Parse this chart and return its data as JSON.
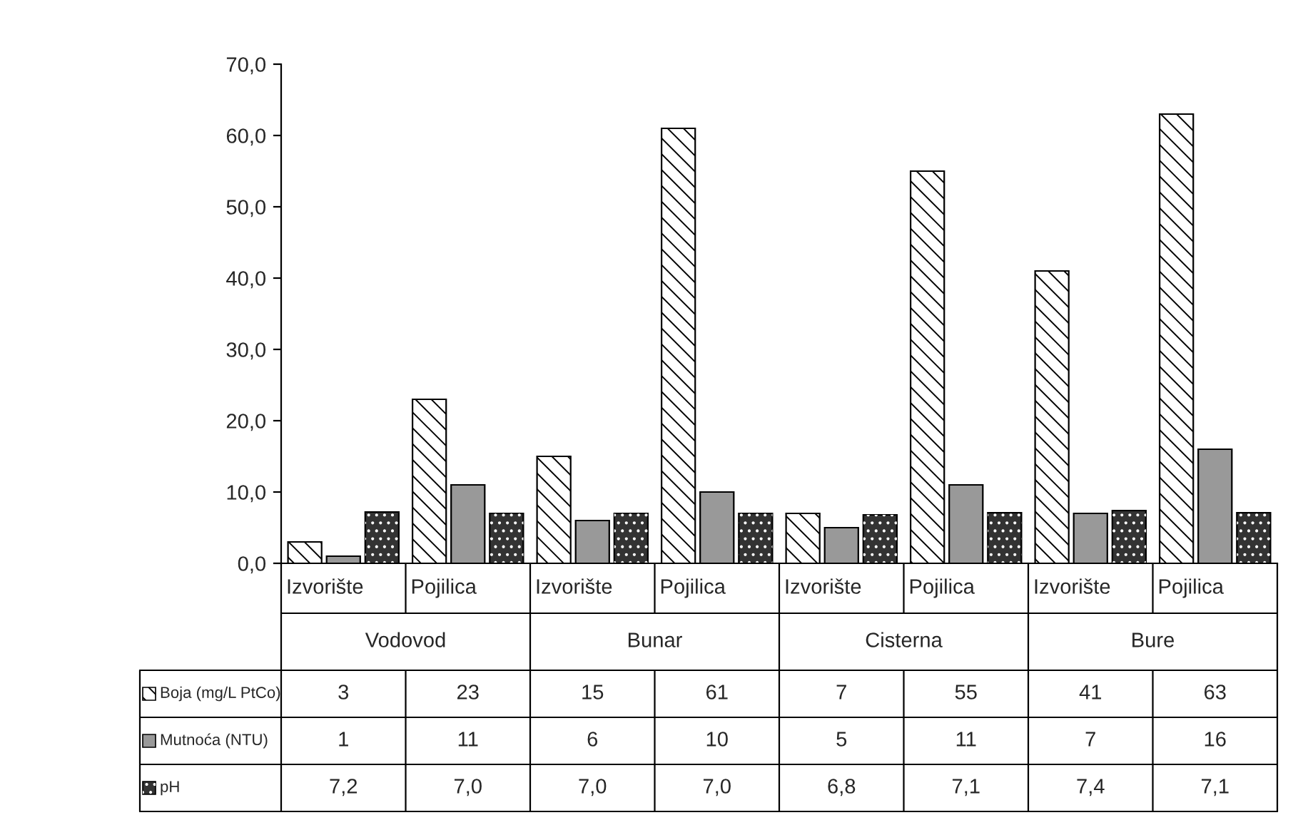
{
  "chart_data": {
    "type": "bar",
    "categories": [
      "Izvorište",
      "Pojilica",
      "Izvorište",
      "Pojilica",
      "Izvorište",
      "Pojilica",
      "Izvorište",
      "Pojilica"
    ],
    "annotations": [
      "Vodovod",
      "Bunar",
      "Cisterna",
      "Bure"
    ],
    "series": [
      {
        "name": "Boja (mg/L PtCo)",
        "color": "#ffffff",
        "values": [
          3,
          23,
          15,
          61,
          7,
          55,
          41,
          63
        ],
        "value_labels": [
          "3",
          "23",
          "15",
          "61",
          "7",
          "55",
          "41",
          "63"
        ]
      },
      {
        "name": "Mutnoća (NTU)",
        "color": "#999999",
        "values": [
          1,
          11,
          6,
          10,
          5,
          11,
          7,
          16
        ],
        "value_labels": [
          "1",
          "11",
          "6",
          "10",
          "5",
          "11",
          "7",
          "16"
        ]
      },
      {
        "name": "pH",
        "color": "#333333",
        "values": [
          7.2,
          7.0,
          7.0,
          7.0,
          6.8,
          7.1,
          7.4,
          7.1
        ],
        "value_labels": [
          "7,2",
          "7,0",
          "7,0",
          "7,0",
          "6,8",
          "7,1",
          "7,4",
          "7,1"
        ]
      }
    ],
    "ylim": [
      0,
      70
    ],
    "yticks": [
      {
        "value": 0,
        "label": "0,0"
      },
      {
        "value": 10,
        "label": "10,0"
      },
      {
        "value": 20,
        "label": "20,0"
      },
      {
        "value": 30,
        "label": "30,0"
      },
      {
        "value": 40,
        "label": "40,0"
      },
      {
        "value": 50,
        "label": "50,0"
      },
      {
        "value": 60,
        "label": "60,0"
      },
      {
        "value": 70,
        "label": "70,0"
      }
    ],
    "grid": false,
    "legend": "bottom"
  }
}
